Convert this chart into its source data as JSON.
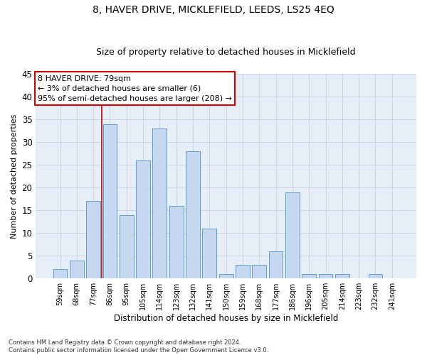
{
  "title": "8, HAVER DRIVE, MICKLEFIELD, LEEDS, LS25 4EQ",
  "subtitle": "Size of property relative to detached houses in Micklefield",
  "xlabel": "Distribution of detached houses by size in Micklefield",
  "ylabel": "Number of detached properties",
  "categories": [
    "59sqm",
    "68sqm",
    "77sqm",
    "86sqm",
    "95sqm",
    "105sqm",
    "114sqm",
    "123sqm",
    "132sqm",
    "141sqm",
    "150sqm",
    "159sqm",
    "168sqm",
    "177sqm",
    "186sqm",
    "196sqm",
    "205sqm",
    "214sqm",
    "223sqm",
    "232sqm",
    "241sqm"
  ],
  "values": [
    2,
    4,
    17,
    34,
    14,
    26,
    33,
    16,
    28,
    11,
    1,
    3,
    3,
    6,
    19,
    1,
    1,
    1,
    0,
    1,
    0
  ],
  "bar_color": "#c5d8f0",
  "bar_edge_color": "#5b9bd5",
  "vline_x_index": 2,
  "vline_color": "#cc0000",
  "annotation_line1": "8 HAVER DRIVE: 79sqm",
  "annotation_line2": "← 3% of detached houses are smaller (6)",
  "annotation_line3": "95% of semi-detached houses are larger (208) →",
  "annotation_box_color": "#ffffff",
  "annotation_box_edge_color": "#cc0000",
  "ylim": [
    0,
    45
  ],
  "yticks": [
    0,
    5,
    10,
    15,
    20,
    25,
    30,
    35,
    40,
    45
  ],
  "grid_color": "#c8d4e8",
  "background_color": "#e8eef8",
  "footnote": "Contains HM Land Registry data © Crown copyright and database right 2024.\nContains public sector information licensed under the Open Government Licence v3.0."
}
